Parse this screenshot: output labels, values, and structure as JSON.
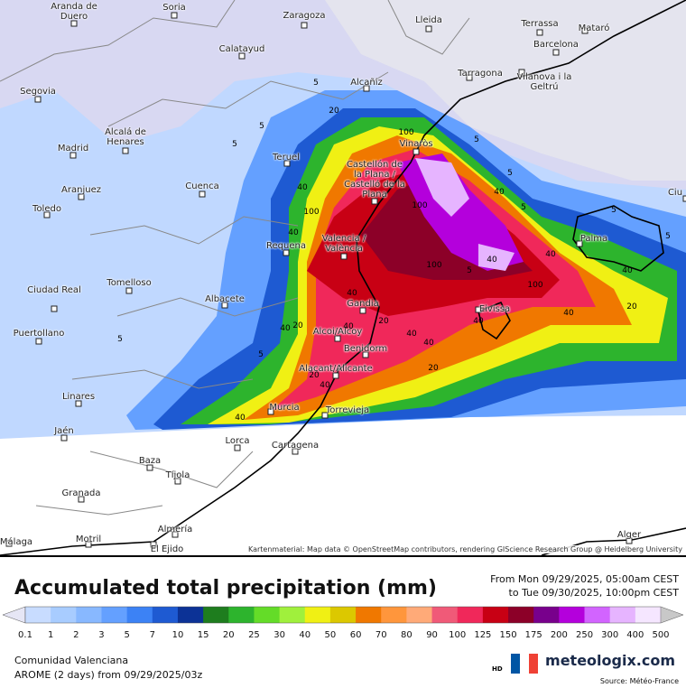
{
  "map": {
    "cities": [
      "Aranda de Duero",
      "Soria",
      "Zaragoza",
      "Lleida",
      "Terrassa",
      "Mataró",
      "Barcelona",
      "Calatayud",
      "Tarragona",
      "Vilanova i la Geltrú",
      "Alcañiz",
      "Segovia",
      "Alcalá de Henares",
      "Madrid",
      "Teruel",
      "Vinaròs",
      "Castellón de la Plana / Castelló de la Plana",
      "Aranjuez",
      "Cuenca",
      "Toledo",
      "Palma",
      "Valencia / València",
      "Requena",
      "Tomelloso",
      "Albacete",
      "Ciudad Real",
      "Gandia",
      "Eivissa",
      "Puertollano",
      "Alcoi/Alcoy",
      "Benidorm",
      "Alacant/Alicante",
      "Linares",
      "Murcia",
      "Torrevieja",
      "Jaén",
      "Lorca",
      "Cartagena",
      "Baza",
      "Tíjola",
      "Granada",
      "Almería",
      "Motril",
      "Alger",
      "Málaga",
      "El Ejido",
      "Ciu"
    ],
    "contour_labels": [
      5,
      5,
      5,
      20,
      40,
      40,
      100,
      100,
      100,
      40,
      5,
      5,
      40,
      100,
      40,
      100,
      40,
      40,
      40,
      20,
      40,
      40,
      5,
      5,
      40,
      40,
      20,
      20,
      40,
      20,
      5,
      5,
      5,
      40,
      40,
      20,
      5
    ],
    "attribution": "Kartenmaterial: Map data © OpenStreetMap contributors, rendering GIScience Research Group @ Heidelberg University"
  },
  "footer": {
    "title": "Accumulated total precipitation (mm)",
    "from": "From Mon 09/29/2025, 05:00am CEST",
    "to": "to Tue 09/30/2025, 10:00pm CEST",
    "region": "Comunidad Valenciana",
    "model": "AROME (2 days)  from  09/29/2025/03z",
    "hd": "HD",
    "logo": "meteologix.com",
    "source": "Source: Météo-France"
  },
  "legend": {
    "levels": [
      0.1,
      1,
      2,
      3,
      5,
      7,
      10,
      15,
      20,
      25,
      30,
      40,
      50,
      60,
      70,
      80,
      90,
      100,
      125,
      150,
      175,
      200,
      250,
      300,
      400,
      500
    ],
    "colors": [
      "#c8dcff",
      "#a8ccff",
      "#88b8ff",
      "#64a0ff",
      "#3c82f5",
      "#1e5ad2",
      "#0c3296",
      "#1e7d1e",
      "#2db42d",
      "#64dc28",
      "#a0f03c",
      "#f0f014",
      "#dcc800",
      "#f07800",
      "#ff963c",
      "#ffaa78",
      "#f05a78",
      "#f0285a",
      "#c80014",
      "#8c0028",
      "#78008c",
      "#b400dc",
      "#d264ff",
      "#e6b4ff",
      "#f5e6ff"
    ],
    "under_color": "#e6e6f5",
    "over_color": "#c8c8c8"
  }
}
